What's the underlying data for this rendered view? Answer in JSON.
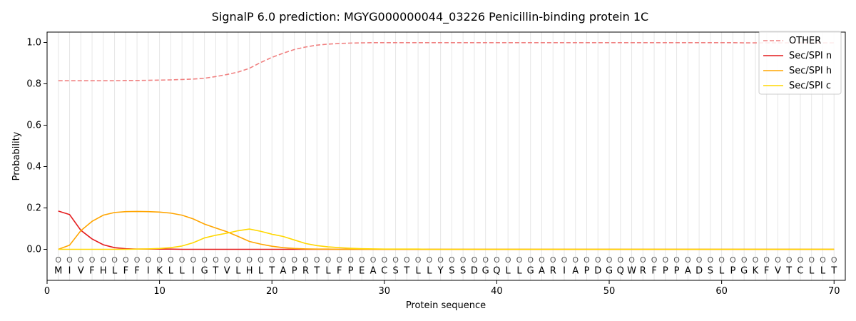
{
  "chart_data": {
    "type": "line",
    "title": "SignalP 6.0 prediction: MGYG000000044_03226 Penicillin-binding protein 1C",
    "xlabel": "Protein sequence",
    "ylabel": "Probability",
    "xlim": [
      0,
      71
    ],
    "ylim": [
      -0.15,
      1.05
    ],
    "xticks": [
      0,
      10,
      20,
      30,
      40,
      50,
      60,
      70
    ],
    "yticks": [
      0.0,
      0.2,
      0.4,
      0.6,
      0.8,
      1.0
    ],
    "xtick_labels": [
      "0",
      "10",
      "20",
      "30",
      "40",
      "50",
      "60",
      "70"
    ],
    "ytick_labels": [
      "0.0",
      "0.2",
      "0.4",
      "0.6",
      "0.8",
      "1.0"
    ],
    "legend_position": "top-right",
    "sequence": [
      "M",
      "I",
      "V",
      "F",
      "H",
      "L",
      "F",
      "F",
      "I",
      "K",
      "L",
      "L",
      "I",
      "G",
      "T",
      "V",
      "L",
      "H",
      "L",
      "T",
      "A",
      "P",
      "R",
      "T",
      "L",
      "F",
      "P",
      "E",
      "A",
      "C",
      "S",
      "T",
      "L",
      "L",
      "Y",
      "S",
      "S",
      "D",
      "G",
      "Q",
      "L",
      "L",
      "G",
      "A",
      "R",
      "I",
      "A",
      "P",
      "D",
      "G",
      "Q",
      "W",
      "R",
      "F",
      "P",
      "P",
      "A",
      "D",
      "S",
      "L",
      "P",
      "G",
      "K",
      "F",
      "V",
      "T",
      "C",
      "L",
      "L",
      "T"
    ],
    "position_marker": "O",
    "series": [
      {
        "name": "OTHER",
        "color": "#f08080",
        "style": "dashed",
        "values": [
          0.815,
          0.815,
          0.815,
          0.815,
          0.815,
          0.815,
          0.816,
          0.816,
          0.817,
          0.818,
          0.819,
          0.821,
          0.823,
          0.827,
          0.835,
          0.845,
          0.857,
          0.875,
          0.903,
          0.928,
          0.948,
          0.966,
          0.978,
          0.987,
          0.992,
          0.995,
          0.997,
          0.998,
          0.999,
          0.999,
          0.999,
          0.999,
          0.999,
          0.999,
          0.999,
          0.999,
          0.999,
          0.999,
          0.999,
          0.999,
          0.999,
          0.999,
          0.999,
          0.999,
          0.999,
          0.999,
          0.999,
          0.999,
          0.999,
          0.999,
          0.999,
          0.999,
          0.999,
          0.999,
          0.999,
          0.999,
          0.999,
          0.999,
          0.999,
          0.999,
          0.999,
          0.998,
          0.998,
          0.998,
          0.998,
          0.998,
          0.998,
          0.998,
          0.998,
          0.998
        ]
      },
      {
        "name": "Sec/SPI n",
        "color": "#e41a1c",
        "style": "solid",
        "values": [
          0.185,
          0.168,
          0.092,
          0.05,
          0.022,
          0.008,
          0.003,
          0.001,
          0.001,
          0.001,
          0.001,
          0,
          0,
          0,
          0,
          0,
          0,
          0,
          0,
          0,
          0,
          0,
          0,
          0,
          0,
          0,
          0,
          0,
          0,
          0,
          0,
          0,
          0,
          0,
          0,
          0,
          0,
          0,
          0,
          0,
          0,
          0,
          0,
          0,
          0,
          0,
          0,
          0,
          0,
          0,
          0,
          0,
          0,
          0,
          0,
          0,
          0,
          0,
          0,
          0,
          0,
          0,
          0,
          0,
          0,
          0,
          0,
          0,
          0,
          0
        ]
      },
      {
        "name": "Sec/SPI h",
        "color": "#ffa500",
        "style": "solid",
        "values": [
          0.0,
          0.02,
          0.09,
          0.135,
          0.165,
          0.178,
          0.182,
          0.183,
          0.182,
          0.18,
          0.175,
          0.165,
          0.147,
          0.122,
          0.103,
          0.085,
          0.062,
          0.038,
          0.025,
          0.015,
          0.008,
          0.004,
          0.002,
          0.001,
          0.001,
          0,
          0,
          0,
          0,
          0,
          0,
          0,
          0,
          0,
          0,
          0,
          0,
          0,
          0,
          0,
          0,
          0,
          0,
          0,
          0,
          0,
          0,
          0,
          0,
          0,
          0,
          0,
          0,
          0,
          0,
          0,
          0,
          0,
          0,
          0,
          0,
          0,
          0,
          0,
          0,
          0,
          0,
          0,
          0,
          0
        ]
      },
      {
        "name": "Sec/SPI c",
        "color": "#ffd700",
        "style": "solid",
        "values": [
          0.0,
          0.0,
          0.0,
          0.0,
          0.0,
          0.0,
          0.0,
          0.001,
          0.002,
          0.004,
          0.008,
          0.016,
          0.032,
          0.055,
          0.068,
          0.078,
          0.09,
          0.098,
          0.087,
          0.073,
          0.062,
          0.045,
          0.028,
          0.018,
          0.012,
          0.008,
          0.005,
          0.003,
          0.002,
          0.001,
          0.001,
          0.001,
          0.001,
          0,
          0,
          0,
          0,
          0,
          0,
          0,
          0,
          0,
          0,
          0,
          0,
          0,
          0,
          0,
          0,
          0,
          0,
          0,
          0,
          0,
          0,
          0,
          0,
          0,
          0,
          0,
          0,
          0,
          0,
          0,
          0,
          0,
          0,
          0,
          0,
          0
        ]
      }
    ]
  }
}
